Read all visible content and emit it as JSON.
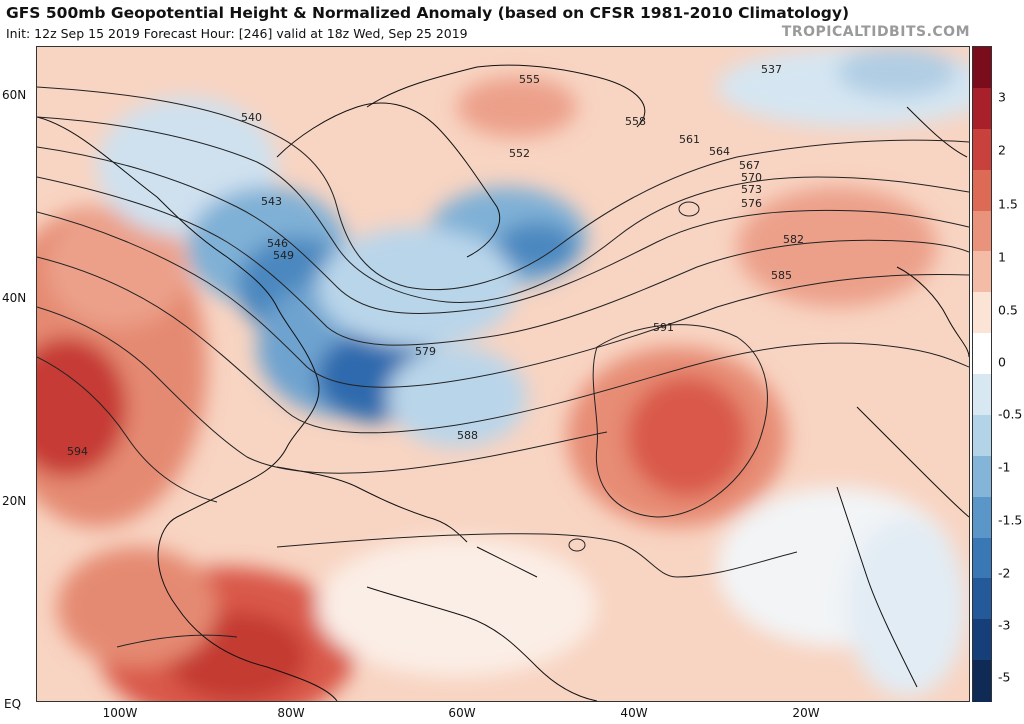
{
  "header": {
    "title": "GFS 500mb Geopotential Height & Normalized Anomaly (based on CFSR 1981-2010 Climatology)",
    "subtitle": "Init: 12z Sep 15 2019   Forecast Hour: [246]   valid at 18z Wed, Sep 25 2019",
    "watermark": "TROPICALTIDBITS.COM"
  },
  "axes": {
    "lat_labels": [
      "60N",
      "40N",
      "20N",
      "EQ"
    ],
    "lon_labels": [
      "100W",
      "80W",
      "60W",
      "40W",
      "20W"
    ]
  },
  "colorbar": {
    "labels": [
      "3",
      "2",
      "1.5",
      "1",
      "0.5",
      "0",
      "-0.5",
      "-1",
      "-1.5",
      "-2",
      "-3",
      "-5"
    ],
    "colors": [
      "#7a0c1c",
      "#a8202a",
      "#c9413c",
      "#dc6a55",
      "#ea937c",
      "#f4bca6",
      "#fbe3d6",
      "#ffffff",
      "#d8e8f3",
      "#b3d3e8",
      "#84b5d8",
      "#5a96c8",
      "#3a78b5",
      "#24599a",
      "#163f7a",
      "#0e2a55"
    ]
  },
  "contour_labels": [
    {
      "text": "540"
    },
    {
      "text": "543"
    },
    {
      "text": "546"
    },
    {
      "text": "549"
    },
    {
      "text": "552"
    },
    {
      "text": "555"
    },
    {
      "text": "558"
    },
    {
      "text": "561"
    },
    {
      "text": "564"
    },
    {
      "text": "567"
    },
    {
      "text": "570"
    },
    {
      "text": "573"
    },
    {
      "text": "576"
    },
    {
      "text": "579"
    },
    {
      "text": "582"
    },
    {
      "text": "585"
    },
    {
      "text": "588"
    },
    {
      "text": "591"
    },
    {
      "text": "594"
    },
    {
      "text": "537"
    }
  ]
}
